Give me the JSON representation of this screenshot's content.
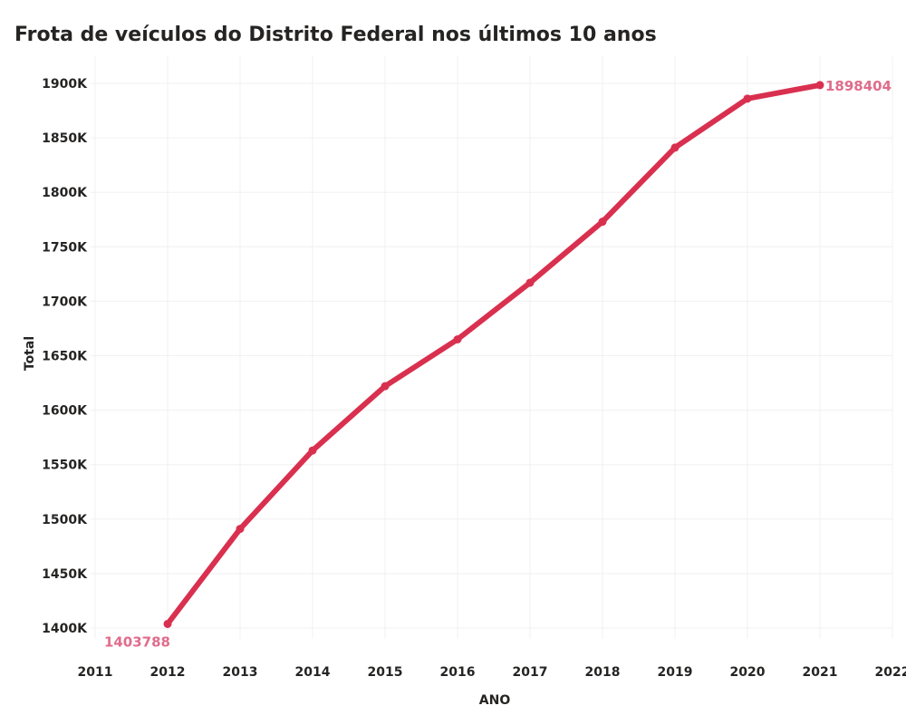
{
  "chart_data": {
    "type": "line",
    "title": "Frota de veículos do Distrito Federal nos últimos 10 anos",
    "xlabel": "ANO",
    "ylabel": "Total",
    "x_ticks": [
      "2011",
      "2012",
      "2013",
      "2014",
      "2015",
      "2016",
      "2017",
      "2018",
      "2019",
      "2020",
      "2021",
      "2022"
    ],
    "y_ticks": [
      "1400K",
      "1450K",
      "1500K",
      "1550K",
      "1600K",
      "1650K",
      "1700K",
      "1750K",
      "1800K",
      "1850K",
      "1900K"
    ],
    "xlim": [
      2011,
      2022
    ],
    "ylim": [
      1400000,
      1900000
    ],
    "grid": true,
    "series": [
      {
        "x": [
          2012,
          2013,
          2014,
          2015,
          2016,
          2017,
          2018,
          2019,
          2020,
          2021
        ],
        "values": [
          1403788,
          1491000,
          1563000,
          1622000,
          1665000,
          1717000,
          1773000,
          1841000,
          1886000,
          1898404
        ],
        "color": "#d9304f"
      }
    ],
    "data_labels": [
      {
        "x": 2012,
        "text": "1403788",
        "position": "below-left"
      },
      {
        "x": 2021,
        "text": "1898404",
        "position": "right"
      }
    ],
    "label_color": "#e06c8c"
  }
}
